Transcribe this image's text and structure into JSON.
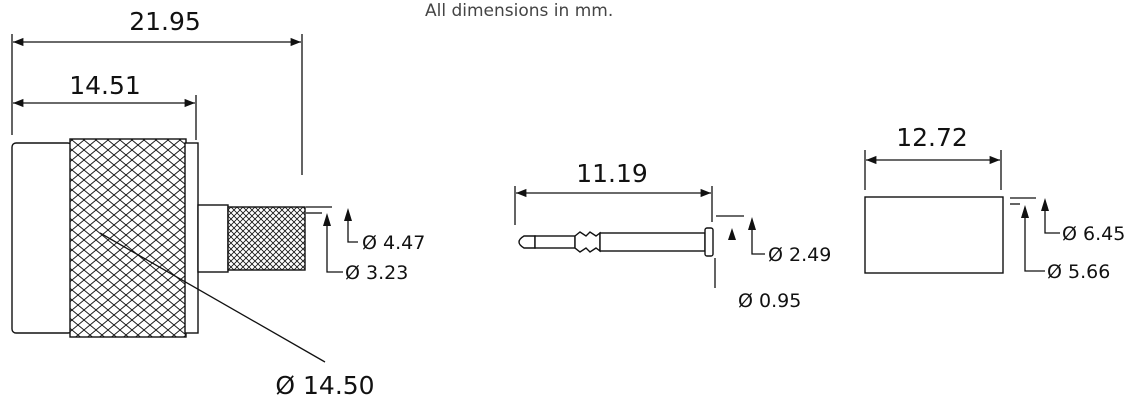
{
  "note": "All dimensions in mm.",
  "connector": {
    "length": "21.95",
    "body_length": "14.51",
    "diameter": "Ø 14.50",
    "crimp_outer": "Ø 4.47",
    "crimp_inner": "Ø 3.23"
  },
  "pin": {
    "length": "11.19",
    "diameter": "Ø 2.49",
    "tip": "Ø 0.95"
  },
  "ferrule": {
    "length": "12.72",
    "outer": "Ø 6.45",
    "inner": "Ø 5.66"
  }
}
